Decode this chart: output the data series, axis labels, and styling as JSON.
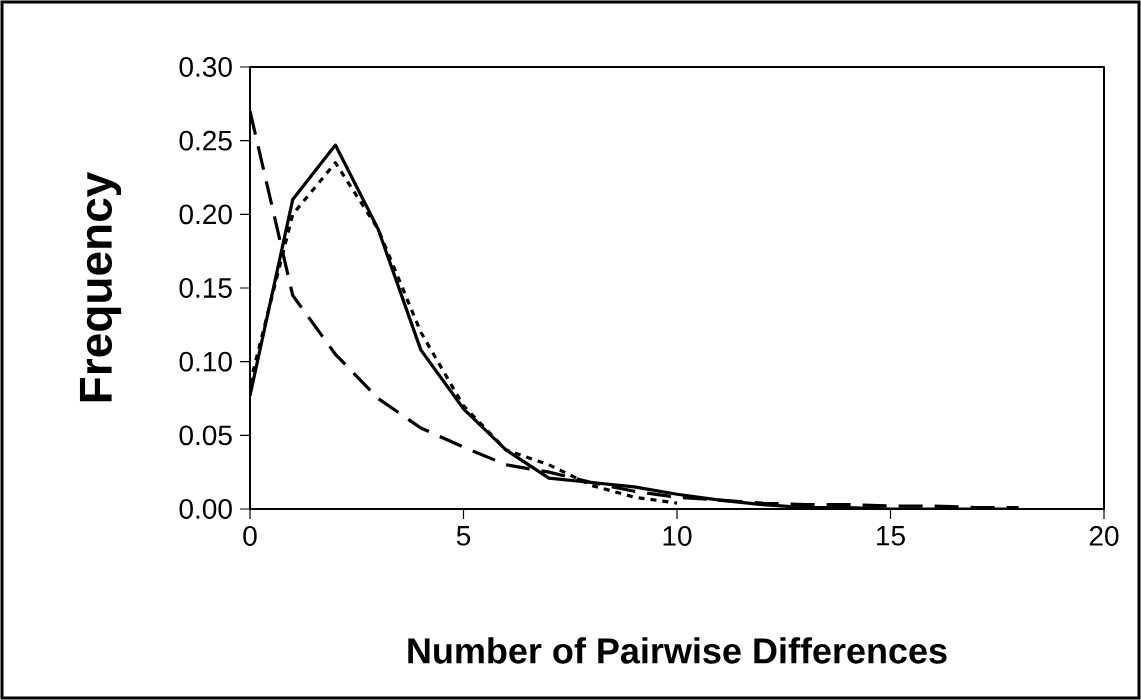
{
  "chart_data": {
    "type": "line",
    "xlabel": "Number of Pairwise Differences",
    "ylabel": "Frequency",
    "x": [
      0,
      1,
      2,
      3,
      4,
      5,
      6,
      7,
      8,
      9,
      10,
      11,
      12,
      13,
      14,
      15,
      16,
      17,
      18
    ],
    "series": [
      {
        "color": "#000000",
        "line_style": "solid",
        "values": [
          0.077,
          0.21,
          0.247,
          0.19,
          0.108,
          0.068,
          0.04,
          0.021,
          0.018,
          0.015,
          0.01,
          0.006,
          0.003,
          0.001,
          0.001,
          0.0,
          0.0,
          0.0,
          0.0
        ]
      },
      {
        "color": "#000000",
        "line_style": "dotted",
        "values": [
          0.085,
          0.2,
          0.235,
          0.19,
          0.12,
          0.07,
          0.04,
          0.03,
          0.016,
          0.008,
          0.004,
          null,
          null,
          null,
          null,
          null,
          null,
          null,
          null
        ]
      },
      {
        "color": "#000000",
        "line_style": "dashed",
        "values": [
          0.27,
          0.145,
          0.105,
          0.075,
          0.055,
          0.042,
          0.03,
          0.025,
          0.018,
          0.012,
          0.008,
          0.006,
          0.004,
          0.003,
          0.003,
          0.002,
          0.002,
          0.001,
          0.001
        ]
      }
    ],
    "xlim": [
      0,
      20
    ],
    "xticks": [
      0,
      5,
      10,
      15,
      20
    ],
    "ylim": [
      0,
      0.3
    ],
    "yticks": [
      {
        "value": 0,
        "label": "0.00"
      },
      {
        "value": 0.05,
        "label": "0.05"
      },
      {
        "value": 0.1,
        "label": "0.10"
      },
      {
        "value": 0.15,
        "label": "0.15"
      },
      {
        "value": 0.2,
        "label": "0.20"
      },
      {
        "value": 0.25,
        "label": "0.25"
      },
      {
        "value": 0.3,
        "label": "0.30"
      }
    ],
    "grid": false,
    "marker": "none"
  }
}
